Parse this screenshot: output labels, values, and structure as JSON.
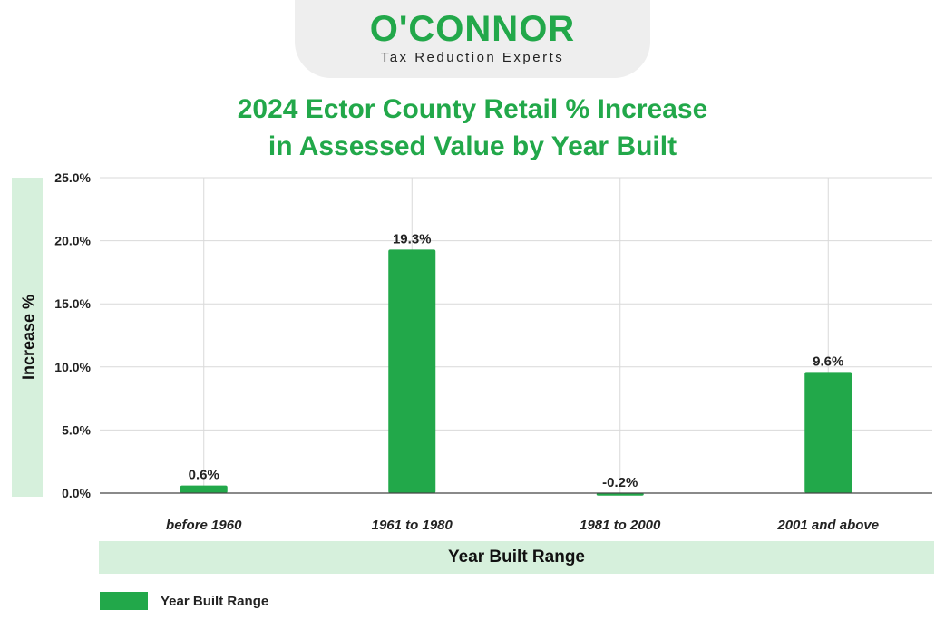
{
  "brand": {
    "name": "O'CONNOR",
    "tagline": "Tax Reduction Experts"
  },
  "colors": {
    "accent": "#22a84a",
    "label_band": "#d6f0dc",
    "grid": "#d9d9d9"
  },
  "chart_data": {
    "type": "bar",
    "title_line1": "2024 Ector County Retail % Increase",
    "title_line2": "in Assessed Value by Year Built",
    "xlabel": "Year Built Range",
    "ylabel": "Increase %",
    "categories": [
      "before 1960",
      "1961 to 1980",
      "1981 to 2000",
      "2001 and above"
    ],
    "series": [
      {
        "name": "Year Built Range",
        "values": [
          0.6,
          19.3,
          -0.2,
          9.6
        ]
      }
    ],
    "data_labels": [
      "0.6%",
      "19.3%",
      "-0.2%",
      "9.6%"
    ],
    "ylim": [
      0,
      25
    ],
    "yticks": [
      0,
      5,
      10,
      15,
      20,
      25
    ],
    "ytick_labels": [
      "0.0%",
      "5.0%",
      "10.0%",
      "15.0%",
      "20.0%",
      "25.0%"
    ],
    "grid": true,
    "legend_position": "bottom-left"
  }
}
